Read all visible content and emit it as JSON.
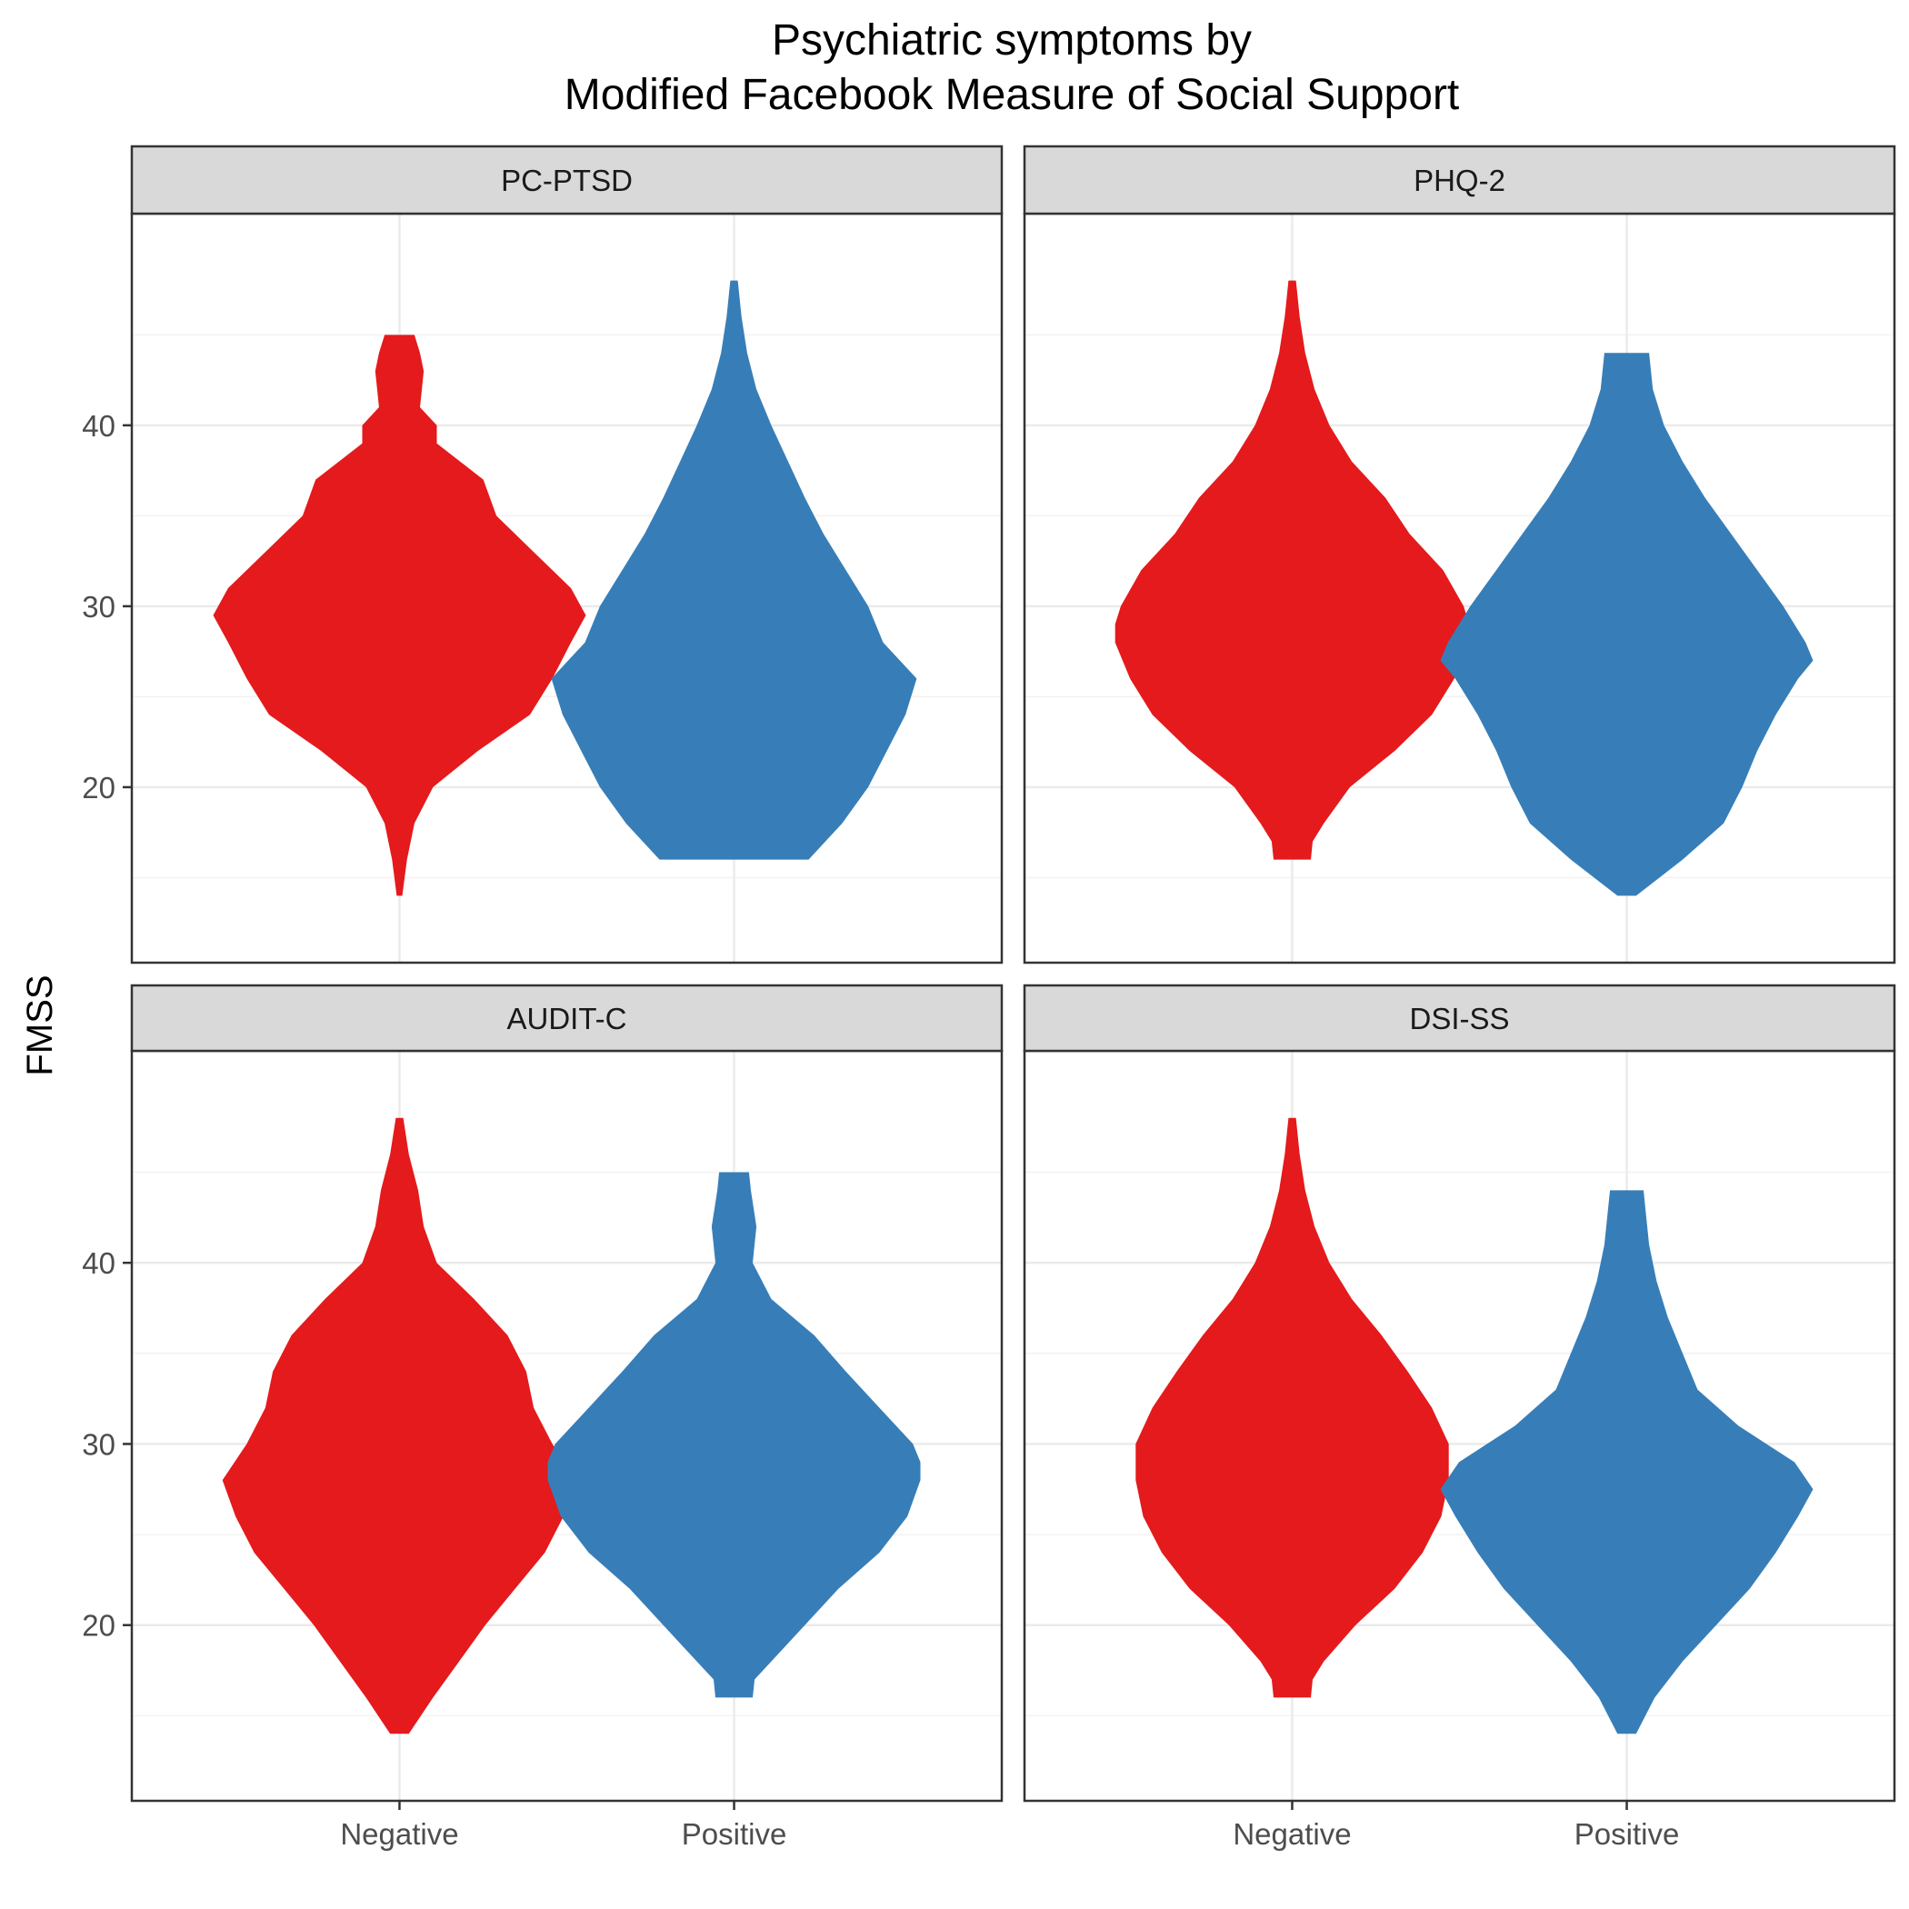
{
  "chart_data": {
    "type": "violin",
    "title": "Psychiatric symptoms by",
    "subtitle": "Modified Facebook Measure of Social Support",
    "ylabel": "FMSS",
    "xlabel": "",
    "categories": [
      "Negative",
      "Positive"
    ],
    "y_ticks": [
      20,
      30,
      40
    ],
    "ylim": [
      10.3,
      51.7
    ],
    "grid": true,
    "colors": {
      "Negative": "#E41A1C",
      "Positive": "#377EB8"
    },
    "panels": [
      {
        "name": "PC-PTSD",
        "series": [
          {
            "group": "Negative",
            "profile": [
              [
                14,
                0.015
              ],
              [
                16,
                0.04
              ],
              [
                18,
                0.08
              ],
              [
                20,
                0.18
              ],
              [
                22,
                0.42
              ],
              [
                24,
                0.7
              ],
              [
                26,
                0.82
              ],
              [
                28,
                0.92
              ],
              [
                29.5,
                1.0
              ],
              [
                31,
                0.92
              ],
              [
                33,
                0.72
              ],
              [
                35,
                0.52
              ],
              [
                37,
                0.45
              ],
              [
                39,
                0.2
              ],
              [
                40,
                0.2
              ],
              [
                41,
                0.11
              ],
              [
                42,
                0.12
              ],
              [
                43,
                0.13
              ],
              [
                44,
                0.11
              ],
              [
                45,
                0.08
              ]
            ]
          },
          {
            "group": "Positive",
            "profile": [
              [
                16,
                0.4
              ],
              [
                18,
                0.58
              ],
              [
                20,
                0.72
              ],
              [
                22,
                0.82
              ],
              [
                24,
                0.92
              ],
              [
                26,
                0.98
              ],
              [
                28,
                0.8
              ],
              [
                30,
                0.72
              ],
              [
                32,
                0.6
              ],
              [
                34,
                0.48
              ],
              [
                36,
                0.38
              ],
              [
                38,
                0.29
              ],
              [
                40,
                0.2
              ],
              [
                42,
                0.12
              ],
              [
                44,
                0.07
              ],
              [
                46,
                0.04
              ],
              [
                48,
                0.02
              ]
            ]
          }
        ]
      },
      {
        "name": "PHQ-2",
        "series": [
          {
            "group": "Negative",
            "profile": [
              [
                16,
                0.1
              ],
              [
                17,
                0.11
              ],
              [
                18,
                0.17
              ],
              [
                20,
                0.31
              ],
              [
                22,
                0.55
              ],
              [
                24,
                0.75
              ],
              [
                26,
                0.87
              ],
              [
                28,
                0.95
              ],
              [
                29,
                0.95
              ],
              [
                30,
                0.92
              ],
              [
                32,
                0.81
              ],
              [
                34,
                0.63
              ],
              [
                36,
                0.5
              ],
              [
                38,
                0.32
              ],
              [
                40,
                0.2
              ],
              [
                42,
                0.12
              ],
              [
                44,
                0.07
              ],
              [
                46,
                0.04
              ],
              [
                48,
                0.02
              ]
            ]
          },
          {
            "group": "Positive",
            "profile": [
              [
                14,
                0.05
              ],
              [
                16,
                0.3
              ],
              [
                18,
                0.52
              ],
              [
                20,
                0.62
              ],
              [
                22,
                0.7
              ],
              [
                24,
                0.8
              ],
              [
                26,
                0.92
              ],
              [
                27,
                1.0
              ],
              [
                28,
                0.96
              ],
              [
                30,
                0.84
              ],
              [
                32,
                0.7
              ],
              [
                34,
                0.56
              ],
              [
                36,
                0.42
              ],
              [
                38,
                0.3
              ],
              [
                40,
                0.2
              ],
              [
                42,
                0.14
              ],
              [
                44,
                0.12
              ]
            ]
          }
        ]
      },
      {
        "name": "AUDIT-C",
        "series": [
          {
            "group": "Negative",
            "profile": [
              [
                14,
                0.05
              ],
              [
                16,
                0.18
              ],
              [
                18,
                0.32
              ],
              [
                20,
                0.46
              ],
              [
                22,
                0.62
              ],
              [
                24,
                0.78
              ],
              [
                26,
                0.88
              ],
              [
                28,
                0.95
              ],
              [
                30,
                0.82
              ],
              [
                32,
                0.72
              ],
              [
                34,
                0.68
              ],
              [
                36,
                0.58
              ],
              [
                38,
                0.4
              ],
              [
                40,
                0.2
              ],
              [
                42,
                0.13
              ],
              [
                44,
                0.1
              ],
              [
                46,
                0.05
              ],
              [
                48,
                0.02
              ]
            ]
          },
          {
            "group": "Positive",
            "profile": [
              [
                16,
                0.1
              ],
              [
                17,
                0.11
              ],
              [
                18,
                0.2
              ],
              [
                20,
                0.38
              ],
              [
                22,
                0.56
              ],
              [
                24,
                0.78
              ],
              [
                26,
                0.93
              ],
              [
                28,
                1.0
              ],
              [
                29,
                1.0
              ],
              [
                30,
                0.96
              ],
              [
                32,
                0.78
              ],
              [
                34,
                0.6
              ],
              [
                36,
                0.43
              ],
              [
                38,
                0.2
              ],
              [
                40,
                0.1
              ],
              [
                42,
                0.12
              ],
              [
                44,
                0.09
              ],
              [
                45,
                0.08
              ]
            ]
          }
        ]
      },
      {
        "name": "DSI-SS",
        "series": [
          {
            "group": "Negative",
            "profile": [
              [
                16,
                0.1
              ],
              [
                17,
                0.11
              ],
              [
                18,
                0.17
              ],
              [
                20,
                0.34
              ],
              [
                22,
                0.55
              ],
              [
                24,
                0.7
              ],
              [
                26,
                0.8
              ],
              [
                28,
                0.84
              ],
              [
                30,
                0.84
              ],
              [
                32,
                0.75
              ],
              [
                34,
                0.62
              ],
              [
                36,
                0.48
              ],
              [
                38,
                0.32
              ],
              [
                40,
                0.2
              ],
              [
                42,
                0.12
              ],
              [
                44,
                0.07
              ],
              [
                46,
                0.04
              ],
              [
                48,
                0.02
              ]
            ]
          },
          {
            "group": "Positive",
            "profile": [
              [
                14,
                0.05
              ],
              [
                16,
                0.15
              ],
              [
                18,
                0.3
              ],
              [
                20,
                0.48
              ],
              [
                22,
                0.66
              ],
              [
                24,
                0.8
              ],
              [
                26,
                0.92
              ],
              [
                27.5,
                1.0
              ],
              [
                29,
                0.9
              ],
              [
                31,
                0.6
              ],
              [
                33,
                0.38
              ],
              [
                35,
                0.3
              ],
              [
                37,
                0.22
              ],
              [
                39,
                0.16
              ],
              [
                41,
                0.12
              ],
              [
                43,
                0.1
              ],
              [
                44,
                0.09
              ]
            ]
          }
        ]
      }
    ]
  }
}
